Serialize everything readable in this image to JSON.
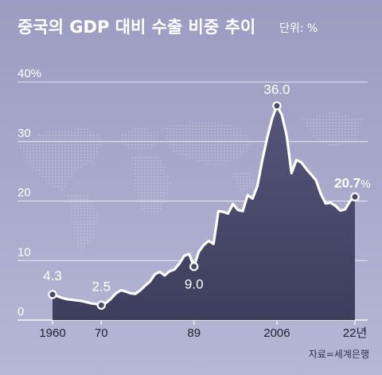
{
  "chart_data": {
    "type": "area",
    "title": "중국의 GDP 대비 수출 비중 추이",
    "unit_label": "단위: %",
    "source": "자료=세계은행",
    "ylim": [
      0,
      40
    ],
    "yticks": [
      "0",
      "10",
      "20",
      "30",
      "40%"
    ],
    "ytick_values": [
      0,
      10,
      20,
      30,
      40
    ],
    "xlim": [
      1955,
      2024
    ],
    "xticks": [
      {
        "year": 1960,
        "label": "1960"
      },
      {
        "year": 1970,
        "label": "70"
      },
      {
        "year": 1989,
        "label": "89"
      },
      {
        "year": 2006,
        "label": "2006"
      },
      {
        "year": 2022,
        "label": "22년"
      }
    ],
    "series": [
      {
        "x": [
          1960,
          1961,
          1962,
          1963,
          1964,
          1965,
          1966,
          1967,
          1968,
          1969,
          1970,
          1971,
          1972,
          1973,
          1974,
          1975,
          1976,
          1977,
          1978,
          1979,
          1980,
          1981,
          1982,
          1983,
          1984,
          1985,
          1986,
          1987,
          1988,
          1989,
          1990,
          1991,
          1992,
          1993,
          1994,
          1995,
          1996,
          1997,
          1998,
          1999,
          2000,
          2001,
          2002,
          2003,
          2004,
          2005,
          2006,
          2007,
          2008,
          2009,
          2010,
          2011,
          2012,
          2013,
          2014,
          2015,
          2016,
          2017,
          2018,
          2019,
          2020,
          2021,
          2022
        ],
        "values": [
          4.3,
          4.0,
          3.7,
          3.5,
          3.4,
          3.3,
          3.2,
          3.0,
          2.8,
          2.7,
          2.5,
          2.9,
          3.6,
          4.5,
          5.0,
          4.8,
          4.5,
          4.4,
          5.0,
          5.8,
          6.5,
          7.7,
          8.1,
          7.5,
          8.2,
          8.5,
          9.5,
          10.8,
          11.1,
          9.0,
          11.5,
          12.6,
          13.3,
          12.8,
          18.3,
          18.2,
          17.9,
          19.5,
          18.5,
          18.3,
          21.0,
          20.4,
          22.5,
          26.8,
          30.6,
          33.8,
          36.0,
          34.5,
          31.0,
          24.7,
          26.9,
          26.5,
          25.4,
          24.5,
          23.5,
          21.2,
          19.6,
          19.7,
          19.2,
          18.4,
          18.6,
          20.0,
          20.7
        ]
      }
    ],
    "annotations": [
      {
        "x": 1960,
        "y": 4.3,
        "label": "4.3"
      },
      {
        "x": 1970,
        "y": 2.5,
        "label": "2.5"
      },
      {
        "x": 1989,
        "y": 9.0,
        "label": "9.0"
      },
      {
        "x": 2006,
        "y": 36.0,
        "label": "36.0"
      },
      {
        "x": 2022,
        "y": 20.7,
        "label": "20.7",
        "suffix": "%"
      }
    ]
  },
  "colors": {
    "bg_top": "#9d9dc3",
    "bg_bottom": "#b4b4d4",
    "area_top": "#525275",
    "area_bottom": "#3e3e5e",
    "line": "#ffffff",
    "grid": "#ffffff"
  }
}
